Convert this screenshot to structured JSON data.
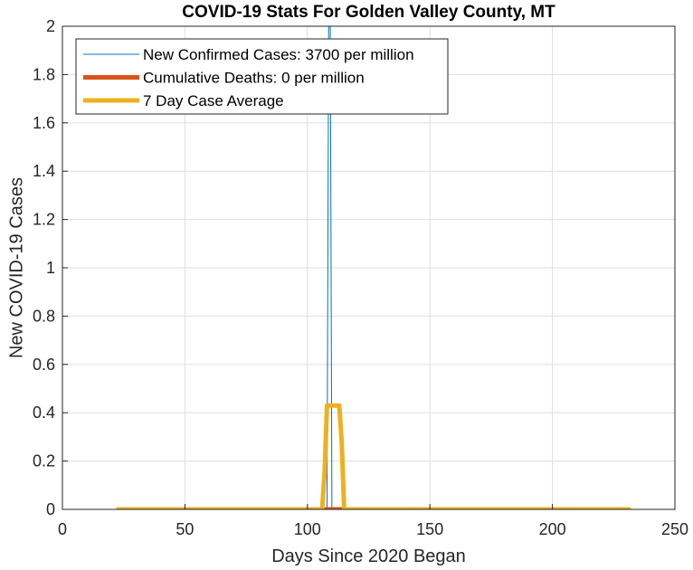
{
  "chart_data": {
    "type": "line",
    "title": "COVID-19 Stats For Golden Valley County, MT",
    "xlabel": "Days Since 2020 Began",
    "ylabel": "New COVID-19 Cases",
    "xlim": [
      0,
      250
    ],
    "ylim": [
      0,
      2
    ],
    "xticks": [
      0,
      50,
      100,
      150,
      200,
      250
    ],
    "yticks": [
      0,
      0.2,
      0.4,
      0.6,
      0.8,
      1,
      1.2,
      1.4,
      1.6,
      1.8,
      2
    ],
    "grid": true,
    "legend_position": "top-left",
    "series": [
      {
        "name": "New Confirmed Cases: 3700 per million",
        "color": "#0072BD",
        "line_width": 1,
        "x": [
          22,
          108,
          109,
          110,
          232
        ],
        "y": [
          0,
          0,
          3,
          0,
          0
        ]
      },
      {
        "name": "Cumulative Deaths: 0 per million",
        "color": "#D95319",
        "line_width": 5,
        "x": [
          106,
          115
        ],
        "y": [
          0,
          0
        ]
      },
      {
        "name": "7 Day Case Average",
        "color": "#EDB120",
        "line_width": 5,
        "x": [
          22,
          106,
          107,
          108,
          109,
          110,
          111,
          112,
          113,
          114,
          115,
          232
        ],
        "y": [
          0,
          0,
          0.15,
          0.43,
          0.43,
          0.43,
          0.43,
          0.43,
          0.43,
          0.28,
          0,
          0
        ]
      }
    ]
  }
}
